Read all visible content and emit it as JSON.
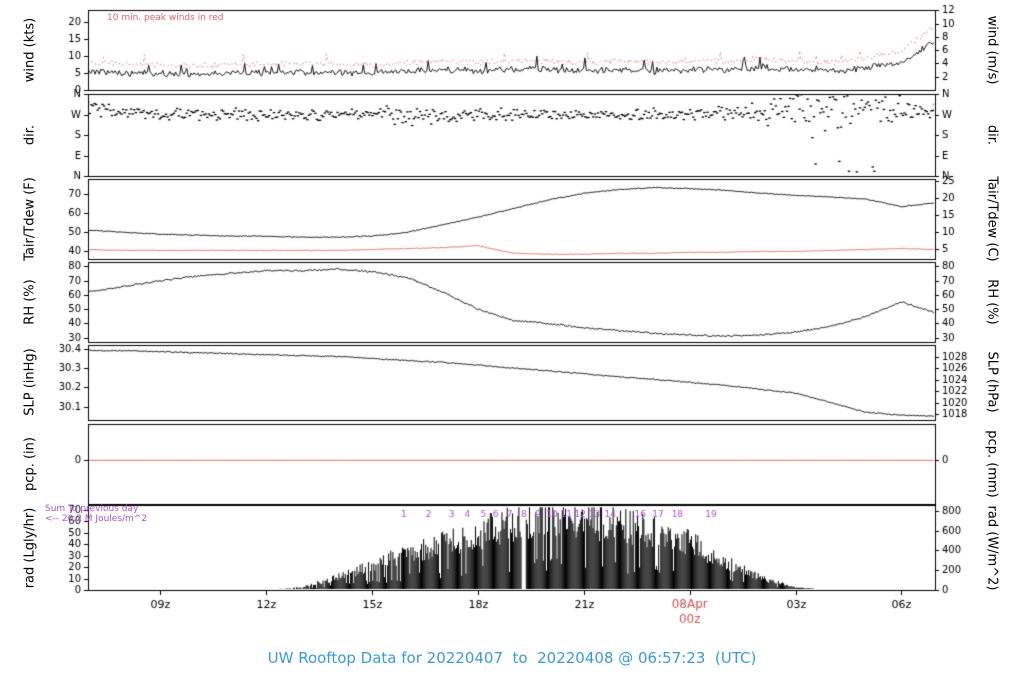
{
  "title": "UW Rooftop Data for 20220407  to  20220408 @ 06:57:23  (UTC)",
  "colors": {
    "black": "#000000",
    "red": "#e06666",
    "pink_red": "#e08080",
    "purple": "#aa55cc",
    "date_red": "#cc5555",
    "title_blue": "#3d9ad1"
  },
  "x_axis": {
    "start": 6.95,
    "end": 30.95,
    "ticks": [
      {
        "label": "09z",
        "hour": 9
      },
      {
        "label": "12z",
        "hour": 12
      },
      {
        "label": "15z",
        "hour": 15
      },
      {
        "label": "18z",
        "hour": 18
      },
      {
        "label": "21z",
        "hour": 21
      },
      {
        "label": "03z",
        "hour": 27
      },
      {
        "label": "06z",
        "hour": 30
      }
    ],
    "date_tick": {
      "line1": "08Apr",
      "line2": "00z",
      "hour": 24
    }
  },
  "chart_data": {
    "hours": [
      7,
      8,
      9,
      10,
      11,
      12,
      13,
      14,
      15,
      16,
      17,
      18,
      19,
      20,
      21,
      22,
      23,
      24,
      25,
      26,
      27,
      28,
      29,
      30,
      31
    ],
    "panels": [
      {
        "id": "wind",
        "type": "line",
        "ylabel_left": "wind (kts)",
        "ylabel_right": "wind (m/s)",
        "ylim": [
          0,
          23.4
        ],
        "yticks_left": {
          "labels": [
            "0",
            "5",
            "10",
            "15",
            "20"
          ],
          "values": [
            0,
            5,
            10,
            15,
            20
          ]
        },
        "yticks_right": {
          "labels": [
            "2",
            "4",
            "6",
            "8",
            "10",
            "12"
          ],
          "values": [
            3.89,
            7.78,
            11.66,
            15.55,
            19.44,
            23.33
          ]
        },
        "annotation": {
          "text": "10 min. peak winds in red"
        },
        "series": [
          {
            "name": "wind-speed",
            "color": "#000000",
            "style": "solid",
            "noise": 1.1,
            "spiky": true,
            "values": [
              5.5,
              5,
              4.8,
              4.5,
              5,
              5,
              5.2,
              5,
              4.8,
              5.5,
              6,
              5.5,
              6,
              6,
              5.5,
              6,
              5.5,
              6,
              6,
              6.5,
              6,
              5.5,
              6.5,
              8,
              15
            ]
          },
          {
            "name": "peak-wind-10min",
            "color": "#e08080",
            "style": "dashed",
            "noise": 1.1,
            "spiky": true,
            "values": [
              8,
              7.5,
              7.2,
              7,
              7.5,
              7.5,
              7.8,
              7.5,
              7.2,
              8,
              8.5,
              8,
              8.5,
              8.5,
              8,
              8.5,
              8,
              8.5,
              8.5,
              9,
              8.5,
              8,
              9,
              11.5,
              19
            ]
          }
        ]
      },
      {
        "id": "dir",
        "type": "scatter",
        "ylabel_left": "dir.",
        "ylabel_right": "dir.",
        "ylim": [
          0,
          360
        ],
        "yticks_left": {
          "labels": [
            "N",
            "W",
            "S",
            "E",
            "N"
          ],
          "values": [
            360,
            270,
            180,
            90,
            0
          ]
        },
        "yticks_right": {
          "labels": [
            "N",
            "W",
            "S",
            "E",
            "N"
          ],
          "values": [
            360,
            270,
            180,
            90,
            0
          ]
        },
        "series": [
          {
            "name": "wind-direction",
            "color": "#000000",
            "style": "scatter",
            "mean": [
              300,
              285,
              275,
              270,
              270,
              268,
              270,
              270,
              268,
              265,
              270,
              268,
              270,
              272,
              270,
              268,
              270,
              272,
              278,
              280,
              290,
              300,
              320,
              290,
              285
            ],
            "spread": [
              45,
              35,
              30,
              30,
              30,
              28,
              30,
              30,
              30,
              70,
              40,
              30,
              30,
              30,
              30,
              30,
              30,
              30,
              35,
              45,
              140,
              150,
              130,
              70,
              45
            ]
          }
        ]
      },
      {
        "id": "temp",
        "type": "line",
        "ylabel_left": "Tair/Tdew (F)",
        "ylabel_right": "Tair/Tdew (C)",
        "ylim": [
          36,
          78
        ],
        "yticks_left": {
          "labels": [
            "40",
            "50",
            "60",
            "70"
          ],
          "values": [
            40,
            50,
            60,
            70
          ]
        },
        "yticks_right": {
          "labels": [
            "5",
            "10",
            "15",
            "20",
            "25"
          ],
          "values": [
            41,
            50,
            59,
            68,
            77
          ]
        },
        "series": [
          {
            "name": "air-temperature",
            "color": "#000000",
            "style": "solid",
            "noise": 0.3,
            "values": [
              51,
              50,
              49,
              48.5,
              48,
              48,
              47.5,
              47.5,
              48,
              50,
              54,
              58,
              62.5,
              67,
              70.5,
              72.5,
              73.5,
              73,
              72,
              70.5,
              69.5,
              68.5,
              67.5,
              63.5,
              65.5
            ]
          },
          {
            "name": "dewpoint",
            "color": "#e06666",
            "style": "solid",
            "noise": 0.25,
            "values": [
              41,
              40.5,
              40.5,
              40.5,
              40.5,
              40.5,
              40.5,
              40.5,
              41,
              41.5,
              42,
              43,
              39,
              38.5,
              38.5,
              39,
              39,
              39.5,
              39.5,
              40,
              40,
              40.5,
              41,
              41.5,
              41
            ]
          }
        ]
      },
      {
        "id": "rh",
        "type": "line",
        "ylabel_left": "RH (%)",
        "ylabel_right": "RH (%)",
        "ylim": [
          27,
          83
        ],
        "yticks_left": {
          "labels": [
            "30",
            "40",
            "50",
            "60",
            "70",
            "80"
          ],
          "values": [
            30,
            40,
            50,
            60,
            70,
            80
          ]
        },
        "yticks_right": {
          "labels": [
            "30",
            "40",
            "50",
            "60",
            "70",
            "80"
          ],
          "values": [
            30,
            40,
            50,
            60,
            70,
            80
          ]
        },
        "series": [
          {
            "name": "relative-humidity",
            "color": "#000000",
            "style": "solid",
            "noise": 0.8,
            "values": [
              62,
              66,
              70,
              73,
              75,
              77,
              77,
              78,
              76,
              72,
              62,
              50,
              42,
              40,
              37,
              35,
              33,
              32,
              31,
              32,
              34,
              38,
              45,
              55,
              47
            ]
          }
        ]
      },
      {
        "id": "slp",
        "type": "line",
        "ylabel_left": "SLP (inHg)",
        "ylabel_right": "SLP (hPa)",
        "ylim": [
          30.03,
          30.42
        ],
        "yticks_left": {
          "labels": [
            "30.1",
            "30.2",
            "30.3",
            "30.4"
          ],
          "values": [
            30.1,
            30.2,
            30.3,
            30.4
          ]
        },
        "yticks_right": {
          "labels": [
            "1028",
            "1026",
            "1024",
            "1022",
            "1020",
            "1018"
          ],
          "values": [
            30.357,
            30.298,
            30.239,
            30.18,
            30.121,
            30.062
          ]
        },
        "series": [
          {
            "name": "sea-level-pressure",
            "color": "#000000",
            "style": "solid",
            "noise": 0.004,
            "values": [
              30.39,
              30.39,
              30.385,
              30.38,
              30.375,
              30.37,
              30.365,
              30.36,
              30.35,
              30.34,
              30.33,
              30.315,
              30.3,
              30.285,
              30.27,
              30.255,
              30.24,
              30.225,
              30.21,
              30.19,
              30.17,
              30.12,
              30.07,
              30.055,
              30.05
            ]
          }
        ]
      },
      {
        "id": "pcp",
        "type": "line",
        "ylabel_left": "pcp. (in)",
        "ylabel_right": "pcp. (mm)",
        "ylim": [
          -1.2,
          1
        ],
        "yticks_left": {
          "labels": [
            "0"
          ],
          "values": [
            0
          ]
        },
        "yticks_right": {
          "labels": [
            "0"
          ],
          "values": [
            0
          ]
        },
        "series": [
          {
            "name": "precipitation",
            "color": "#dd5555",
            "style": "solid",
            "noise": 0,
            "values": [
              0,
              0,
              0,
              0,
              0,
              0,
              0,
              0,
              0,
              0,
              0,
              0,
              0,
              0,
              0,
              0,
              0,
              0,
              0,
              0,
              0,
              0,
              0,
              0,
              0
            ]
          }
        ]
      },
      {
        "id": "rad",
        "type": "area",
        "ylabel_left": "rad (Lgly/hr)",
        "ylabel_right": "rad (W/m^2)",
        "ylim": [
          0,
          74
        ],
        "yticks_left": {
          "labels": [
            "0",
            "10",
            "20",
            "30",
            "40",
            "50",
            "60",
            "70"
          ],
          "values": [
            0,
            10,
            20,
            30,
            40,
            50,
            60,
            70
          ]
        },
        "yticks_right": {
          "labels": [
            "0",
            "200",
            "400",
            "600",
            "800"
          ],
          "values": [
            0,
            17.2,
            34.4,
            51.6,
            68.8
          ]
        },
        "sum_note": {
          "line1": "Sum To previous day",
          "line2": "<-- 20.2 M Joules/m^2"
        },
        "mj_markers": {
          "labels": [
            "1",
            "2",
            "3",
            "4",
            "5",
            "6",
            "7",
            "8",
            "9",
            "10",
            "11",
            "12",
            "13",
            "14",
            "16",
            "17",
            "18",
            "19"
          ],
          "hours": [
            15.9,
            16.6,
            17.25,
            17.7,
            18.15,
            18.5,
            18.9,
            19.3,
            19.7,
            20.1,
            20.5,
            20.9,
            21.3,
            21.75,
            22.6,
            23.1,
            23.65,
            24.6
          ]
        },
        "series": [
          {
            "name": "solar-radiation",
            "color": "#000000",
            "style": "area",
            "gaps": [
              [
                19.22,
                19.34
              ]
            ],
            "values": [
              0,
              0,
              0,
              0,
              0,
              0,
              2,
              10,
              20,
              30,
              38,
              46,
              55,
              60,
              58,
              54,
              48,
              38,
              24,
              10,
              2,
              0,
              0,
              0,
              0
            ]
          }
        ]
      }
    ]
  }
}
